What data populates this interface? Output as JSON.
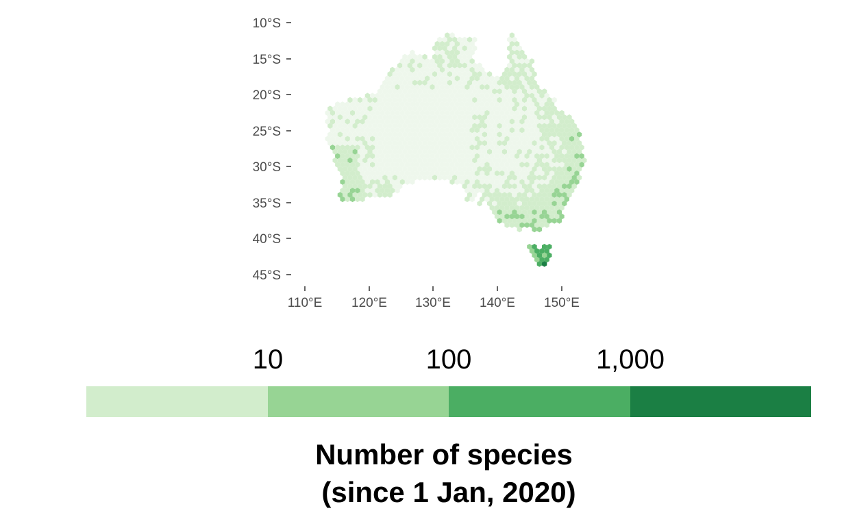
{
  "map": {
    "lat_ticks": [
      {
        "lat": -10,
        "label": "10°S"
      },
      {
        "lat": -15,
        "label": "15°S"
      },
      {
        "lat": -20,
        "label": "20°S"
      },
      {
        "lat": -25,
        "label": "25°S"
      },
      {
        "lat": -30,
        "label": "30°S"
      },
      {
        "lat": -35,
        "label": "35°S"
      },
      {
        "lat": -40,
        "label": "40°S"
      },
      {
        "lat": -45,
        "label": "45°S"
      }
    ],
    "lon_ticks": [
      {
        "lon": 110,
        "label": "110°E"
      },
      {
        "lon": 120,
        "label": "120°E"
      },
      {
        "lon": 130,
        "label": "130°E"
      },
      {
        "lon": 140,
        "label": "140°E"
      },
      {
        "lon": 150,
        "label": "150°E"
      }
    ],
    "region": "Australia",
    "cell_shape": "hexagon"
  },
  "legend": {
    "tick_labels": [
      "10",
      "100",
      "1,000"
    ],
    "title_line1": "Number of species",
    "title_line2": "(since 1 Jan, 2020)",
    "bins": [
      {
        "range": "< 10",
        "color": "#d2edcc"
      },
      {
        "range": "10 - 100",
        "color": "#97d494"
      },
      {
        "range": "100 - 1,000",
        "color": "#4bae63"
      },
      {
        "range": "> 1,000",
        "color": "#1b7f44"
      }
    ]
  },
  "colors": {
    "lightest": "#eef7ec",
    "light": "#d2edcc",
    "medium": "#97d494",
    "dark": "#4bae63",
    "darkest": "#1b7f44",
    "axis_text": "#4d4d4d"
  }
}
